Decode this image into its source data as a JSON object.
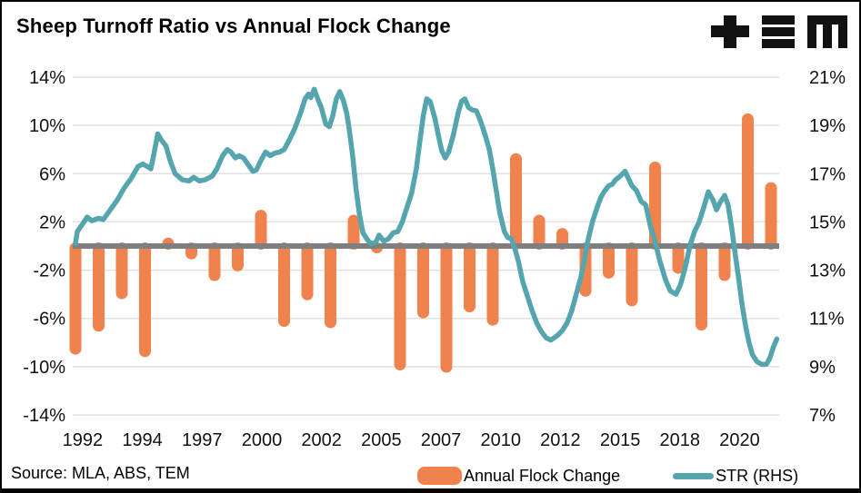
{
  "header": {
    "title": "Sheep Turnoff Ratio vs Annual Flock Change",
    "logo_name": "TEM logo"
  },
  "chart_data": {
    "type": "bar+line",
    "title": "Sheep Turnoff Ratio vs Annual Flock Change",
    "left_axis": {
      "label_values": [
        14,
        10,
        6,
        2,
        -2,
        -6,
        -10,
        -14
      ],
      "tick_labels": [
        "14%",
        "10%",
        "6%",
        "2%",
        "-2%",
        "-6%",
        "-10%",
        "-14%"
      ],
      "range": [
        -14,
        14
      ]
    },
    "right_axis": {
      "label_values": [
        21,
        19,
        17,
        15,
        13,
        11,
        9,
        7
      ],
      "tick_labels": [
        "21%",
        "19%",
        "17%",
        "15%",
        "13%",
        "11%",
        "9%",
        "7%"
      ],
      "range": [
        7,
        21
      ]
    },
    "x_axis": {
      "tick_labels": [
        "1992",
        "1994",
        "1997",
        "2000",
        "2002",
        "2005",
        "2007",
        "2010",
        "2012",
        "2015",
        "2018",
        "2020"
      ],
      "range": [
        1992,
        2022.5
      ]
    },
    "grid": true,
    "bars": {
      "name": "Annual Flock Change",
      "axis": "left",
      "years": [
        1992,
        1993,
        1994,
        1995,
        1996,
        1997,
        1998,
        1999,
        2000,
        2001,
        2002,
        2003,
        2004,
        2005,
        2006,
        2007,
        2008,
        2009,
        2010,
        2011,
        2012,
        2013,
        2014,
        2015,
        2016,
        2017,
        2018,
        2019,
        2020,
        2021,
        2022
      ],
      "values": [
        -9.0,
        -7.1,
        -4.4,
        -9.2,
        0.7,
        -1.1,
        -2.9,
        -2.1,
        3.0,
        -6.7,
        -4.5,
        -6.8,
        2.6,
        -0.6,
        -10.3,
        -6.0,
        -10.5,
        -5.5,
        -6.6,
        7.7,
        2.6,
        1.5,
        -4.2,
        -2.7,
        -5.0,
        7.0,
        -2.3,
        -7.0,
        -2.9,
        11.0,
        5.3
      ]
    },
    "line": {
      "name": "STR (RHS)",
      "axis": "right",
      "points": [
        [
          1992.0,
          14.1
        ],
        [
          1992.08,
          14.6
        ],
        [
          1992.3,
          14.9
        ],
        [
          1992.5,
          15.2
        ],
        [
          1992.7,
          15.05
        ],
        [
          1993.0,
          15.15
        ],
        [
          1993.2,
          15.1
        ],
        [
          1993.5,
          15.5
        ],
        [
          1993.8,
          15.9
        ],
        [
          1994.1,
          16.4
        ],
        [
          1994.4,
          16.8
        ],
        [
          1994.7,
          17.3
        ],
        [
          1994.9,
          17.4
        ],
        [
          1995.1,
          17.3
        ],
        [
          1995.25,
          17.2
        ],
        [
          1995.4,
          17.9
        ],
        [
          1995.55,
          18.65
        ],
        [
          1995.7,
          18.4
        ],
        [
          1995.9,
          18.15
        ],
        [
          1996.1,
          17.5
        ],
        [
          1996.3,
          17.0
        ],
        [
          1996.6,
          16.75
        ],
        [
          1996.9,
          16.7
        ],
        [
          1997.1,
          16.85
        ],
        [
          1997.35,
          16.7
        ],
        [
          1997.6,
          16.75
        ],
        [
          1997.9,
          16.9
        ],
        [
          1998.1,
          17.2
        ],
        [
          1998.35,
          17.75
        ],
        [
          1998.55,
          18.0
        ],
        [
          1998.7,
          17.9
        ],
        [
          1998.9,
          17.65
        ],
        [
          1999.05,
          17.75
        ],
        [
          1999.25,
          17.65
        ],
        [
          1999.5,
          17.3
        ],
        [
          1999.65,
          17.1
        ],
        [
          1999.8,
          17.15
        ],
        [
          2000.0,
          17.55
        ],
        [
          2000.2,
          17.9
        ],
        [
          2000.4,
          17.75
        ],
        [
          2000.6,
          17.85
        ],
        [
          2000.8,
          17.9
        ],
        [
          2001.0,
          18.0
        ],
        [
          2001.2,
          18.35
        ],
        [
          2001.45,
          18.85
        ],
        [
          2001.7,
          19.5
        ],
        [
          2001.9,
          20.1
        ],
        [
          2002.05,
          20.3
        ],
        [
          2002.15,
          20.15
        ],
        [
          2002.3,
          20.5
        ],
        [
          2002.45,
          20.1
        ],
        [
          2002.6,
          19.75
        ],
        [
          2002.8,
          19.05
        ],
        [
          2002.95,
          18.95
        ],
        [
          2003.1,
          19.4
        ],
        [
          2003.25,
          20.1
        ],
        [
          2003.4,
          20.4
        ],
        [
          2003.55,
          20.05
        ],
        [
          2003.7,
          19.5
        ],
        [
          2003.8,
          18.9
        ],
        [
          2003.95,
          17.8
        ],
        [
          2004.1,
          16.4
        ],
        [
          2004.25,
          15.3
        ],
        [
          2004.4,
          14.55
        ],
        [
          2004.6,
          14.25
        ],
        [
          2004.75,
          14.1
        ],
        [
          2004.95,
          14.15
        ],
        [
          2005.1,
          14.45
        ],
        [
          2005.3,
          14.2
        ],
        [
          2005.5,
          14.3
        ],
        [
          2005.7,
          14.55
        ],
        [
          2005.9,
          14.6
        ],
        [
          2006.1,
          15.0
        ],
        [
          2006.3,
          15.6
        ],
        [
          2006.5,
          16.2
        ],
        [
          2006.7,
          17.2
        ],
        [
          2006.85,
          18.3
        ],
        [
          2007.0,
          19.4
        ],
        [
          2007.15,
          20.1
        ],
        [
          2007.3,
          20.0
        ],
        [
          2007.5,
          19.3
        ],
        [
          2007.65,
          18.6
        ],
        [
          2007.8,
          17.95
        ],
        [
          2007.95,
          17.65
        ],
        [
          2008.1,
          17.9
        ],
        [
          2008.3,
          18.6
        ],
        [
          2008.5,
          19.5
        ],
        [
          2008.65,
          20.0
        ],
        [
          2008.8,
          20.1
        ],
        [
          2008.95,
          19.75
        ],
        [
          2009.1,
          19.65
        ],
        [
          2009.3,
          19.6
        ],
        [
          2009.5,
          19.1
        ],
        [
          2009.7,
          18.5
        ],
        [
          2009.85,
          18.0
        ],
        [
          2010.0,
          17.2
        ],
        [
          2010.15,
          16.3
        ],
        [
          2010.3,
          15.4
        ],
        [
          2010.5,
          14.6
        ],
        [
          2010.65,
          14.35
        ],
        [
          2010.8,
          14.3
        ],
        [
          2010.95,
          13.9
        ],
        [
          2011.1,
          13.4
        ],
        [
          2011.3,
          12.5
        ],
        [
          2011.5,
          11.9
        ],
        [
          2011.7,
          11.3
        ],
        [
          2011.9,
          10.8
        ],
        [
          2012.1,
          10.45
        ],
        [
          2012.3,
          10.2
        ],
        [
          2012.5,
          10.1
        ],
        [
          2012.65,
          10.2
        ],
        [
          2012.8,
          10.3
        ],
        [
          2013.0,
          10.5
        ],
        [
          2013.2,
          10.8
        ],
        [
          2013.4,
          11.3
        ],
        [
          2013.6,
          12.0
        ],
        [
          2013.8,
          12.7
        ],
        [
          2013.95,
          13.4
        ],
        [
          2014.1,
          14.2
        ],
        [
          2014.3,
          15.0
        ],
        [
          2014.5,
          15.6
        ],
        [
          2014.65,
          16.0
        ],
        [
          2014.8,
          16.25
        ],
        [
          2015.0,
          16.5
        ],
        [
          2015.15,
          16.55
        ],
        [
          2015.3,
          16.75
        ],
        [
          2015.5,
          16.9
        ],
        [
          2015.7,
          17.1
        ],
        [
          2015.85,
          16.8
        ],
        [
          2016.0,
          16.5
        ],
        [
          2016.2,
          16.3
        ],
        [
          2016.4,
          15.85
        ],
        [
          2016.6,
          15.7
        ],
        [
          2016.8,
          14.8
        ],
        [
          2017.0,
          14.2
        ],
        [
          2017.2,
          13.4
        ],
        [
          2017.45,
          12.6
        ],
        [
          2017.65,
          12.15
        ],
        [
          2017.9,
          12.0
        ],
        [
          2018.1,
          12.4
        ],
        [
          2018.3,
          13.1
        ],
        [
          2018.5,
          14.0
        ],
        [
          2018.7,
          14.6
        ],
        [
          2018.9,
          15.0
        ],
        [
          2019.1,
          15.6
        ],
        [
          2019.3,
          16.25
        ],
        [
          2019.5,
          15.9
        ],
        [
          2019.65,
          15.5
        ],
        [
          2019.8,
          15.8
        ],
        [
          2020.0,
          16.1
        ],
        [
          2020.15,
          15.7
        ],
        [
          2020.3,
          14.8
        ],
        [
          2020.45,
          13.7
        ],
        [
          2020.6,
          12.7
        ],
        [
          2020.75,
          11.6
        ],
        [
          2020.9,
          10.7
        ],
        [
          2021.05,
          10.0
        ],
        [
          2021.2,
          9.5
        ],
        [
          2021.4,
          9.2
        ],
        [
          2021.6,
          9.1
        ],
        [
          2021.8,
          9.1
        ],
        [
          2021.95,
          9.35
        ],
        [
          2022.1,
          9.8
        ],
        [
          2022.25,
          10.15
        ]
      ]
    },
    "colors": {
      "bar": "#F0824E",
      "line": "#55A5AE",
      "zero_line": "#7F7F7F",
      "grid": "#E2E2E2",
      "text": "#111111"
    }
  },
  "footer": {
    "source": "Source: MLA, ABS, TEM",
    "legend_bar": "Annual Flock Change",
    "legend_line": "STR (RHS)"
  }
}
